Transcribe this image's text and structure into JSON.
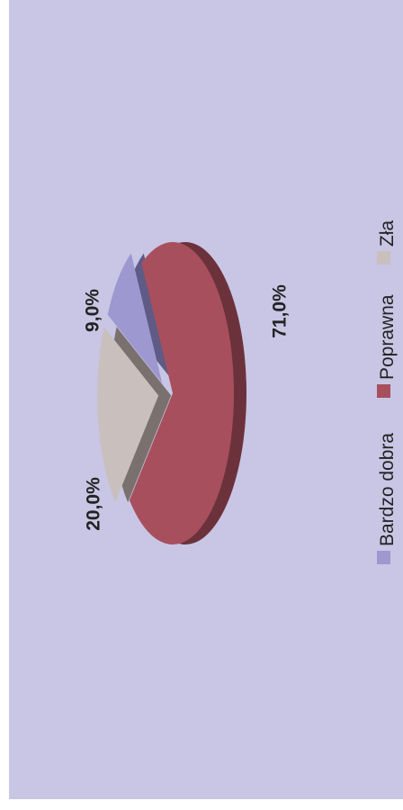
{
  "background_color": "#c8c6e4",
  "chart_data": {
    "type": "pie",
    "title": "",
    "slices": [
      {
        "label": "Bardzo dobra",
        "value": 9.0,
        "display": "9,0%",
        "color": "#9d98cf",
        "side_color": "#5f5a86"
      },
      {
        "label": "Poprawna",
        "value": 71.0,
        "display": "71,0%",
        "color": "#a84f5e",
        "side_color": "#6c323c"
      },
      {
        "label": "Zła",
        "value": 20.0,
        "display": "20,0%",
        "color": "#c9bfbd",
        "side_color": "#7a716e"
      }
    ],
    "legend_position": "right",
    "three_d": true,
    "exploded": true
  }
}
